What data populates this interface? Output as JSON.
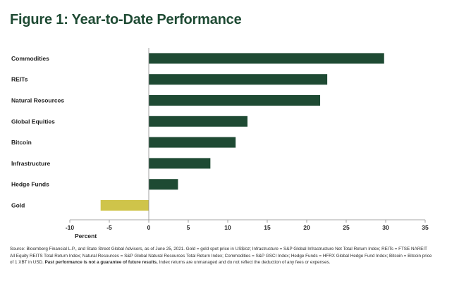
{
  "title": "Figure 1: Year-to-Date Performance",
  "chart_data": {
    "type": "bar",
    "orientation": "horizontal",
    "categories": [
      "Commodities",
      "REITs",
      "Natural Resources",
      "Global Equities",
      "Bitcoin",
      "Infrastructure",
      "Hedge Funds",
      "Gold"
    ],
    "values": [
      29.8,
      22.6,
      21.7,
      12.5,
      11.0,
      7.8,
      3.7,
      -6.1
    ],
    "bar_colors": [
      "#1e4a33",
      "#1e4a33",
      "#1e4a33",
      "#1e4a33",
      "#1e4a33",
      "#1e4a33",
      "#1e4a33",
      "#cfc44a"
    ],
    "xlabel": "Percent",
    "xlim": [
      -10,
      35
    ],
    "xticks": [
      -10,
      -5,
      0,
      5,
      10,
      15,
      20,
      25,
      30,
      35
    ],
    "xtick_labels": [
      "-10",
      "-5",
      "0",
      "5",
      "10",
      "15",
      "20",
      "25",
      "30",
      "35"
    ],
    "grid": false
  },
  "source": {
    "text_start": "Source: Bloomberg Financial L.P., and State Street Global Advisors, as of June 25, 2021. Gold = gold spot price in US$/oz; Infrastructure = S&P Global Infrastructure Net Total Return Index; REITs = FTSE NAREIT All Equity REITS Total Return Index; Natural Resources = S&P Global Natural Resources Total Return Index; Commodities = S&P GSCI Index; Hedge Funds = HFRX Global Hedge Fund Index; Bitcoin = Bitcoin price of 1 XBT in USD.",
    "text_bold": "Past performance is not a guarantee of future results.",
    "text_end": "Index returns are unmanaged and do not reflect the deduction of any fees or expenses."
  }
}
